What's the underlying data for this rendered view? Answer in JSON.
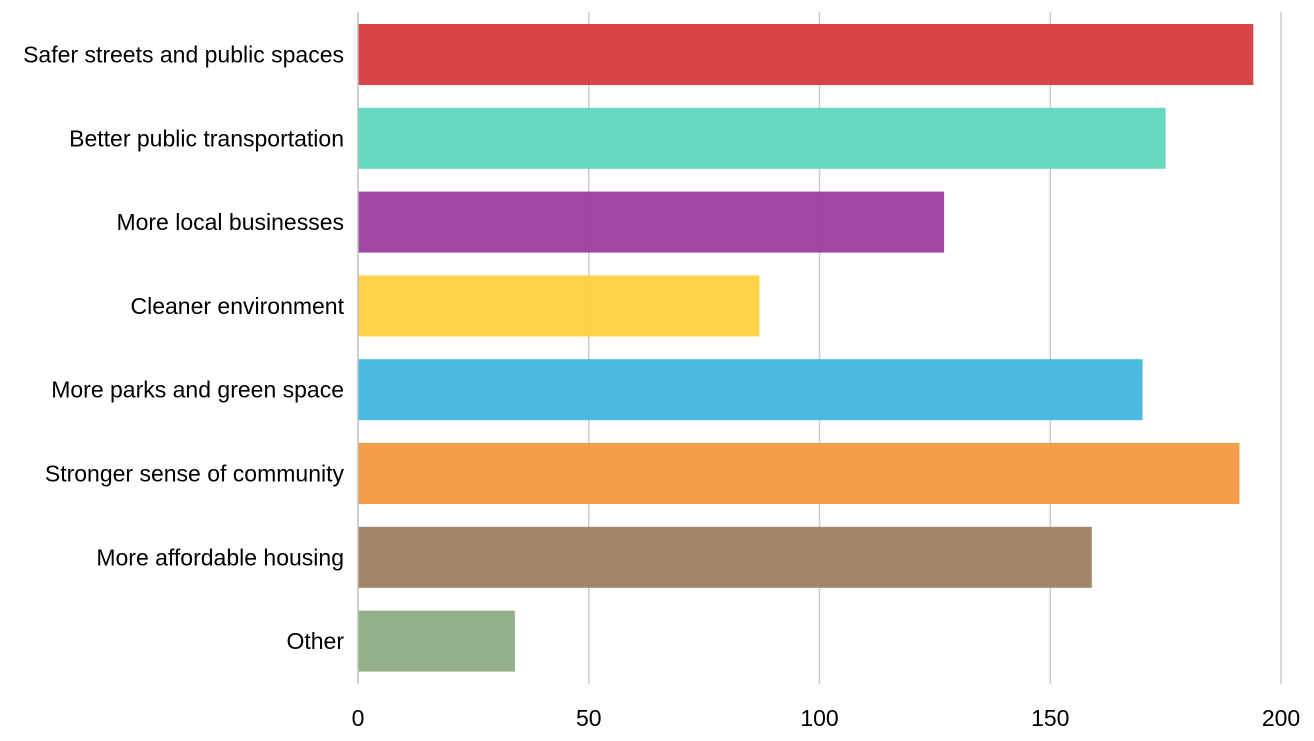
{
  "chart_data": {
    "type": "bar",
    "orientation": "horizontal",
    "title": "",
    "xlabel": "",
    "ylabel": "",
    "categories": [
      "Safer streets and public spaces",
      "Better public transportation",
      "More local businesses",
      "Cleaner environment",
      "More parks and green space",
      "Stronger sense of community",
      "More affordable housing",
      "Other"
    ],
    "values": [
      194,
      175,
      127,
      87,
      170,
      191,
      159,
      34
    ],
    "colors": [
      "#d63b3e",
      "#5ed6bc",
      "#9d3d9f",
      "#fdd23e",
      "#40b6e0",
      "#f4993f",
      "#9c7f63",
      "#8fad86"
    ],
    "xlim": [
      0,
      200
    ],
    "xticks": [
      0,
      50,
      100,
      150,
      200
    ],
    "grid": true,
    "legend": "none"
  }
}
